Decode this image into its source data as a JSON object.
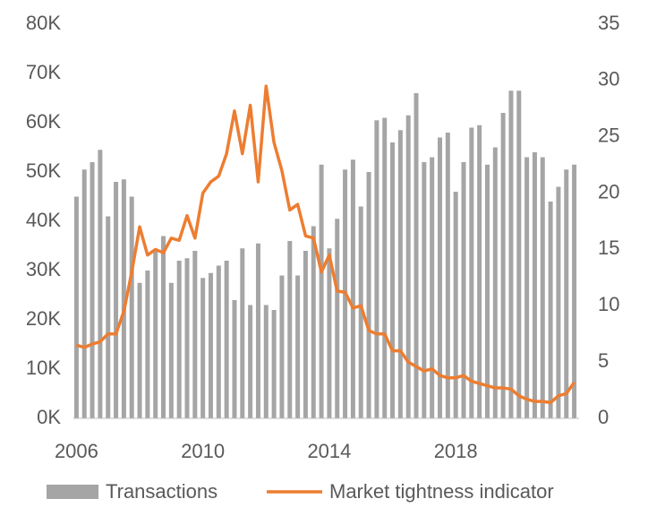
{
  "chart_data": {
    "type": "bar-line",
    "categories": [
      "2006",
      null,
      null,
      null,
      null,
      null,
      null,
      null,
      null,
      null,
      null,
      null,
      null,
      null,
      null,
      null,
      "2010",
      null,
      null,
      null,
      null,
      null,
      null,
      null,
      null,
      null,
      null,
      null,
      null,
      null,
      null,
      null,
      "2014",
      null,
      null,
      null,
      null,
      null,
      null,
      null,
      null,
      null,
      null,
      null,
      null,
      null,
      null,
      null,
      "2018",
      null,
      null,
      null,
      null,
      null,
      null,
      null,
      null,
      null,
      null,
      null,
      null,
      null,
      null,
      null
    ],
    "series": [
      {
        "name": "Transactions",
        "type": "bar",
        "color": "#a5a5a5",
        "values": [
          45000,
          50500,
          52000,
          54500,
          41000,
          48000,
          48500,
          45000,
          27500,
          30000,
          34000,
          37000,
          27500,
          32000,
          32500,
          34000,
          28500,
          29500,
          31000,
          32000,
          24000,
          34500,
          23000,
          35500,
          23000,
          22000,
          29000,
          36000,
          29000,
          34000,
          39000,
          51500,
          34500,
          40500,
          50500,
          52500,
          43000,
          50000,
          60500,
          61000,
          56000,
          58500,
          61500,
          66000,
          52000,
          53000,
          57000,
          58000,
          46000,
          52000,
          59000,
          59500,
          51500,
          55000,
          62000,
          66500,
          66500,
          53000,
          54000,
          53000,
          44000,
          47000,
          50500,
          51500
        ]
      },
      {
        "name": "Market tightness indicator",
        "type": "line",
        "axis": "y2",
        "color": "#ed7d31",
        "values": [
          6.5,
          6.3,
          6.6,
          6.8,
          7.5,
          7.5,
          9.5,
          13,
          17,
          14.5,
          15,
          14.7,
          16,
          15.8,
          18,
          16,
          20,
          21,
          21.5,
          23.5,
          27.3,
          23.5,
          27.8,
          21,
          29.5,
          24.5,
          22,
          18.5,
          19,
          16.2,
          16,
          13,
          14.5,
          11.3,
          11.2,
          9.8,
          10,
          7.8,
          7.5,
          7.5,
          6,
          6,
          5,
          4.6,
          4.2,
          4.4,
          3.8,
          3.6,
          3.6,
          3.8,
          3.3,
          3.1,
          2.9,
          2.7,
          2.7,
          2.6,
          2,
          1.7,
          1.5,
          1.5,
          1.4,
          2,
          2.2,
          3.2
        ]
      }
    ],
    "ylim": [
      0,
      80000
    ],
    "yticks": [
      {
        "value": 0,
        "label": "0K"
      },
      {
        "value": 10000,
        "label": "10K"
      },
      {
        "value": 20000,
        "label": "20K"
      },
      {
        "value": 30000,
        "label": "30K"
      },
      {
        "value": 40000,
        "label": "40K"
      },
      {
        "value": 50000,
        "label": "50K"
      },
      {
        "value": 60000,
        "label": "60K"
      },
      {
        "value": 70000,
        "label": "70K"
      },
      {
        "value": 80000,
        "label": "80K"
      }
    ],
    "y2lim": [
      0,
      35
    ],
    "y2ticks": [
      0,
      5,
      10,
      15,
      20,
      25,
      30,
      35
    ],
    "legend": "bottom"
  }
}
